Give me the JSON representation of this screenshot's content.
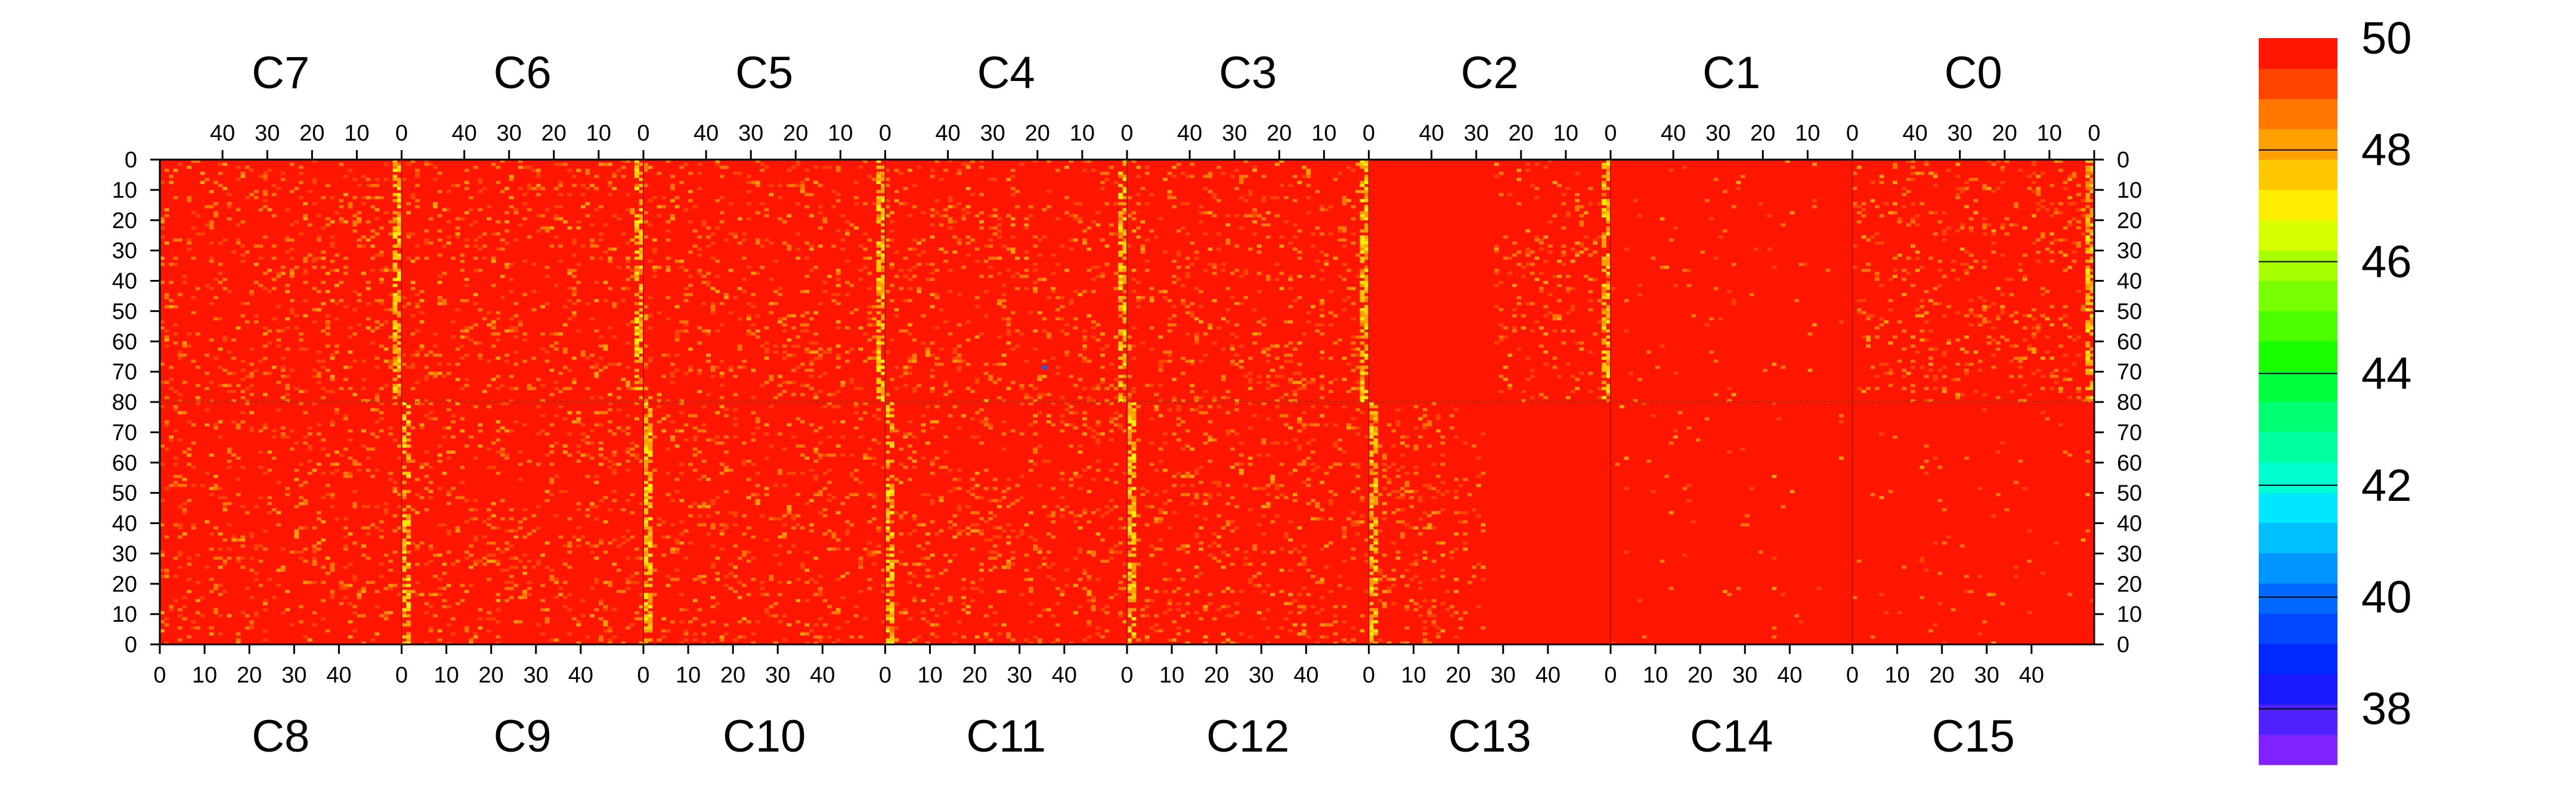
{
  "chart_data": {
    "type": "heatmap",
    "title": "",
    "top_columns": [
      "C7",
      "C6",
      "C5",
      "C4",
      "C3",
      "C2",
      "C1",
      "C0"
    ],
    "bottom_columns": [
      "C8",
      "C9",
      "C10",
      "C11",
      "C12",
      "C13",
      "C14",
      "C15"
    ],
    "x_ticks_top": [
      40,
      30,
      20,
      10,
      0
    ],
    "x_ticks_bottom": [
      0,
      10,
      20,
      30,
      40
    ],
    "x_range_per_column": [
      0,
      54
    ],
    "y_ticks_top_half": [
      0,
      10,
      20,
      30,
      40,
      50,
      60,
      70,
      80
    ],
    "y_ticks_bottom_half": [
      80,
      70,
      60,
      50,
      40,
      30,
      20,
      10,
      0
    ],
    "y_range_per_half": [
      0,
      80
    ],
    "rows_per_half": 80,
    "bins_per_column": 54,
    "colorbar": {
      "min": 37,
      "max": 50,
      "ticks": [
        50,
        48,
        46,
        44,
        42,
        40,
        38
      ],
      "colors": [
        "#7f22ff",
        "#4f21ff",
        "#1a1aff",
        "#0028ff",
        "#0047ff",
        "#0068ff",
        "#0096ff",
        "#00bfff",
        "#00e7ff",
        "#00ffd0",
        "#00ffa0",
        "#00ff71",
        "#00ff3d",
        "#19ff00",
        "#4bff00",
        "#78ff00",
        "#a8ff00",
        "#d8ff00",
        "#ffee00",
        "#ffc800",
        "#ffa000",
        "#ff7600",
        "#ff4400",
        "#ff1600"
      ]
    },
    "background_value": 50,
    "hot_columns_value": 48.5,
    "hot_column_positions": [
      {
        "column": "C7",
        "bin": 0
      },
      {
        "column": "C6",
        "bin": 0
      },
      {
        "column": "C5",
        "bin": 0
      },
      {
        "column": "C4",
        "bin": 0
      },
      {
        "column": "C3",
        "bin": 0
      },
      {
        "column": "C2",
        "bin": 0
      },
      {
        "column": "C0",
        "bin": 0
      },
      {
        "column": "C9",
        "bin": 0
      },
      {
        "column": "C10",
        "bin": 0
      },
      {
        "column": "C11",
        "bin": 0
      },
      {
        "column": "C12",
        "bin": 0
      },
      {
        "column": "C13",
        "bin": 0
      }
    ],
    "min_observed_value": 40
  }
}
